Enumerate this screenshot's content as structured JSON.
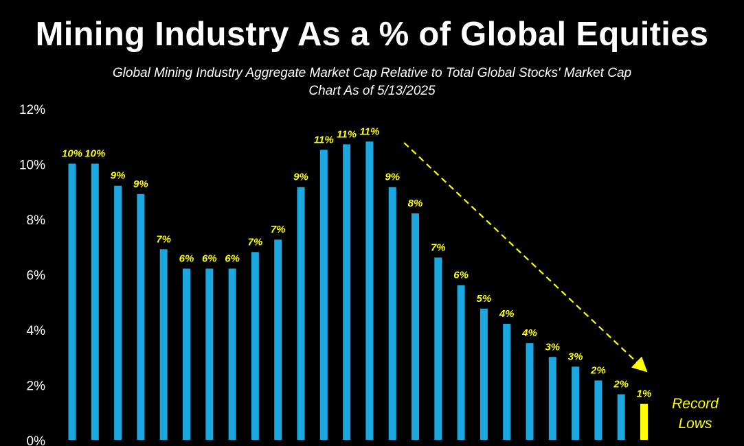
{
  "chart_data": {
    "type": "bar",
    "title": "Mining Industry As a % of Global Equities",
    "subtitle_lines": [
      "Global Mining Industry Aggregate Market Cap Relative to Total Global Stocks' Market Cap",
      "Chart As of 5/13/2025"
    ],
    "ylim": [
      0,
      12
    ],
    "yticks": [
      0,
      2,
      4,
      6,
      8,
      10,
      12
    ],
    "ytick_labels": [
      "0%",
      "2%",
      "4%",
      "6%",
      "8%",
      "10%",
      "12%"
    ],
    "values": [
      10.0,
      10.0,
      9.2,
      8.9,
      6.9,
      6.2,
      6.2,
      6.2,
      6.8,
      7.25,
      9.15,
      10.5,
      10.7,
      10.8,
      9.15,
      8.2,
      6.6,
      5.6,
      4.75,
      4.2,
      3.5,
      3.0,
      2.65,
      2.15,
      1.65,
      1.3
    ],
    "data_labels": [
      "10%",
      "10%",
      "9%",
      "9%",
      "7%",
      "6%",
      "6%",
      "6%",
      "7%",
      "7%",
      "9%",
      "11%",
      "11%",
      "11%",
      "9%",
      "8%",
      "7%",
      "6%",
      "5%",
      "4%",
      "4%",
      "3%",
      "3%",
      "2%",
      "2%",
      "1%"
    ],
    "bar_color": "#1BA7E0",
    "highlight_color": "#FFFF00",
    "highlight_index": 25,
    "label_color": "#FFFF00",
    "annotation": {
      "lines": [
        "Record",
        "Lows"
      ],
      "color": "#FFFF00"
    },
    "trend_arrow": {
      "from_index": 14,
      "to_index": 25,
      "color": "#FFFF00",
      "style": "dashed"
    }
  }
}
